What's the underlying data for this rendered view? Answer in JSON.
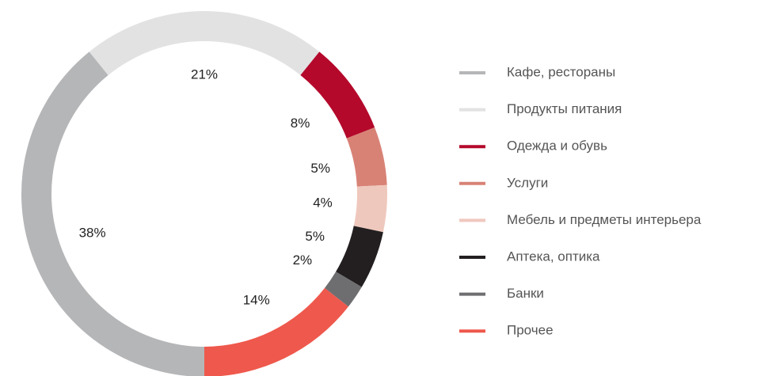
{
  "chart_data": {
    "type": "donut",
    "categories": [
      "Кафе, рестораны",
      "Продукты питания",
      "Одежда и обувь",
      "Услуги",
      "Мебель и предметы интерьера",
      "Аптека, оптика",
      "Банки",
      "Прочее"
    ],
    "values": [
      38,
      21,
      8,
      5,
      4,
      5,
      2,
      14
    ],
    "value_labels": [
      "38%",
      "21%",
      "8%",
      "5%",
      "4%",
      "5%",
      "2%",
      "14%"
    ],
    "colors": [
      "#b5b6b8",
      "#e2e2e3",
      "#b4092b",
      "#d88276",
      "#efc8bd",
      "#231f20",
      "#6e6e71",
      "#ef584c"
    ],
    "legend": "right"
  }
}
